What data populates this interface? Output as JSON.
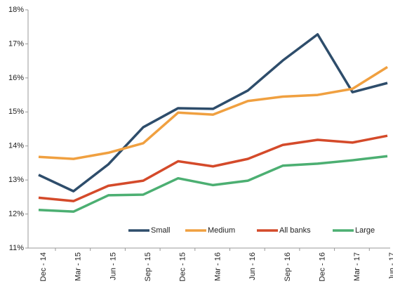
{
  "chart_data": {
    "type": "line",
    "categories": [
      "Dec - 14",
      "Mar - 15",
      "Jun - 15",
      "Sep - 15",
      "Dec - 15",
      "Mar - 16",
      "Jun - 16",
      "Sep - 16",
      "Dec - 16",
      "Mar - 17",
      "Jun - 17"
    ],
    "series": [
      {
        "name": "Small",
        "color": "#2e4d6b",
        "values": [
          13.15,
          12.67,
          13.46,
          14.55,
          15.11,
          15.09,
          15.63,
          16.51,
          17.28,
          15.58,
          15.85
        ]
      },
      {
        "name": "Medium",
        "color": "#f0a040",
        "values": [
          13.68,
          13.62,
          13.8,
          14.08,
          14.98,
          14.92,
          15.32,
          15.45,
          15.5,
          15.68,
          16.32
        ]
      },
      {
        "name": "All banks",
        "color": "#d44a2a",
        "values": [
          12.48,
          12.38,
          12.83,
          12.98,
          13.55,
          13.4,
          13.62,
          14.03,
          14.18,
          14.1,
          14.3
        ]
      },
      {
        "name": "Large",
        "color": "#4caf72",
        "values": [
          12.12,
          12.07,
          12.55,
          12.57,
          13.05,
          12.85,
          12.98,
          13.42,
          13.48,
          13.58,
          13.7
        ]
      }
    ],
    "ylim": [
      11,
      18
    ],
    "yticks": [
      {
        "value": 11,
        "label": "11%"
      },
      {
        "value": 12,
        "label": "12%"
      },
      {
        "value": 13,
        "label": "13%"
      },
      {
        "value": 14,
        "label": "14%"
      },
      {
        "value": 15,
        "label": "15%"
      },
      {
        "value": 16,
        "label": "16%"
      },
      {
        "value": 17,
        "label": "17%"
      },
      {
        "value": 18,
        "label": "18%"
      }
    ],
    "grid": false,
    "legend": "bottom-right"
  }
}
